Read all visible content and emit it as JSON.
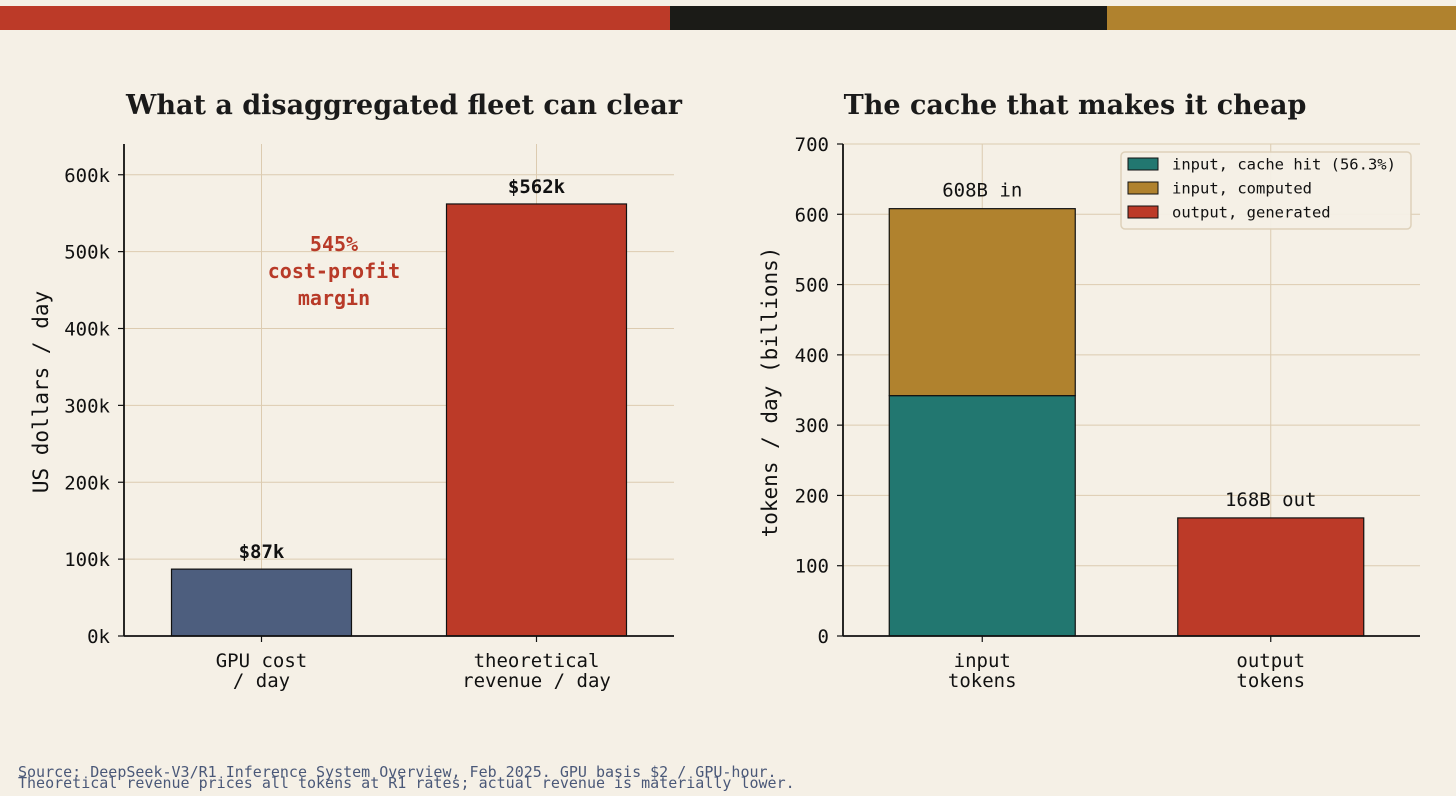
{
  "colors": {
    "background": "#f5f0e6",
    "grid": "#dccbb0",
    "bar_gpu": "#4d5e7e",
    "bar_revenue": "#bc3a28",
    "cache_hit": "#227770",
    "computed": "#b0822e",
    "output": "#bc3a28",
    "annotation": "#b83a28",
    "topbar": [
      "#bc3a28",
      "#1b1b17",
      "#b0822e"
    ]
  },
  "chart_data": [
    {
      "type": "bar",
      "title": "What a disaggregated fleet can clear",
      "ylabel": "US dollars / day",
      "ylim": [
        0,
        640000
      ],
      "yticks": [
        0,
        100000,
        200000,
        300000,
        400000,
        500000,
        600000
      ],
      "ytick_labels": [
        "0k",
        "100k",
        "200k",
        "300k",
        "400k",
        "500k",
        "600k"
      ],
      "categories": [
        [
          "GPU cost",
          "/ day"
        ],
        [
          "theoretical",
          "revenue / day"
        ]
      ],
      "values": [
        87000,
        562000
      ],
      "value_labels": [
        "$87k",
        "$562k"
      ],
      "annotation": [
        "545%",
        "cost-profit",
        "margin"
      ],
      "grid": true
    },
    {
      "type": "bar",
      "stacked": true,
      "title": "The cache that makes it cheap",
      "ylabel": "tokens / day  (billions)",
      "ylim": [
        0,
        700
      ],
      "yticks": [
        0,
        100,
        200,
        300,
        400,
        500,
        600,
        700
      ],
      "ytick_labels": [
        "0",
        "100",
        "200",
        "300",
        "400",
        "500",
        "600",
        "700"
      ],
      "categories": [
        [
          "input",
          "tokens"
        ],
        [
          "output",
          "tokens"
        ]
      ],
      "series": [
        {
          "name": "input, cache hit (56.3%)",
          "values": [
            342,
            0
          ]
        },
        {
          "name": "input, computed",
          "values": [
            266,
            0
          ]
        },
        {
          "name": "output, generated",
          "values": [
            0,
            168
          ]
        }
      ],
      "total_labels": [
        "608B in",
        "168B out"
      ],
      "legend": "top-right",
      "grid": true
    }
  ],
  "source": {
    "line1": "Source: DeepSeek-V3/R1 Inference System Overview, Feb 2025. GPU basis $2 / GPU-hour.",
    "line2": "Theoretical revenue prices all tokens at R1 rates; actual revenue is materially lower."
  }
}
